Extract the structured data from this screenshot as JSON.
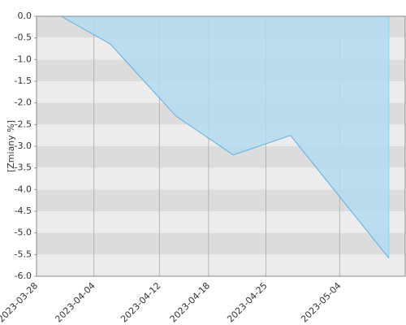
{
  "chart_data": {
    "type": "area",
    "y_label": "[Zmiany %]",
    "x": [
      "2023-03-31",
      "2023-04-06",
      "2023-04-14",
      "2023-04-21",
      "2023-04-28",
      "2023-05-10"
    ],
    "series": [
      {
        "color": "#5aaee6",
        "values": [
          0.0,
          -0.64,
          -2.3,
          -3.2,
          -2.75,
          -5.58
        ]
      }
    ],
    "fill_color": "#b3dbee",
    "xlim": [
      "2023-03-28",
      "2023-05-12"
    ],
    "xticks": [
      "2023-03-28",
      "2023-04-04",
      "2023-04-12",
      "2023-04-18",
      "2023-04-25",
      "2023-05-04"
    ],
    "ylim": [
      -6,
      0
    ],
    "yticks": [
      {
        "value": 0,
        "label": "0.0"
      },
      -0.5,
      {
        "value": -1,
        "label": "-1.0"
      },
      -1.5,
      {
        "value": -2,
        "label": "-2.0"
      },
      -2.5,
      {
        "value": -3,
        "label": "-3.0"
      },
      -3.5,
      {
        "value": -4,
        "label": "-4.0"
      },
      -4.5,
      {
        "value": -5,
        "label": "-5.0"
      },
      -5.5,
      {
        "value": -6,
        "label": "-6.0"
      }
    ],
    "grid": true
  }
}
